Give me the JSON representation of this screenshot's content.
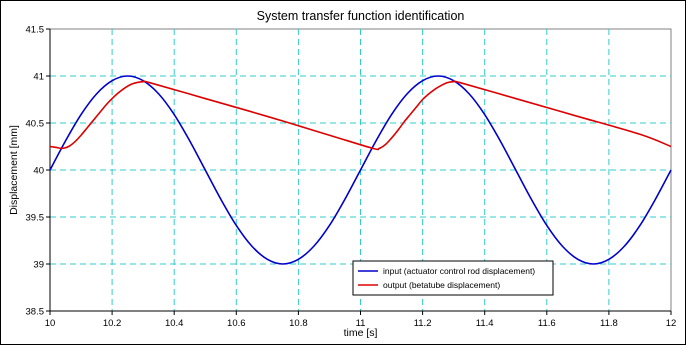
{
  "chart_data": {
    "type": "line",
    "title": "System transfer function identification",
    "xlabel": "time [s]",
    "ylabel": "Displacement [mm]",
    "xlim": [
      10,
      12
    ],
    "ylim": [
      38.5,
      41.5
    ],
    "xticks": [
      10,
      10.2,
      10.4,
      10.6,
      10.8,
      11,
      11.2,
      11.4,
      11.6,
      11.8,
      12
    ],
    "xtick_labels": [
      "10",
      "10.2",
      "10.4",
      "10.6",
      "10.8",
      "11",
      "11.2",
      "11.4",
      "11.6",
      "11.8",
      "12"
    ],
    "yticks": [
      38.5,
      39,
      39.5,
      40,
      40.5,
      41,
      41.5
    ],
    "ytick_labels": [
      "38.5",
      "39",
      "39.5",
      "40",
      "40.5",
      "41",
      "41.5"
    ],
    "grid": true,
    "legend_position": "bottom-center",
    "series": [
      {
        "name": "input (actuator control rod displacement)",
        "color": "#0000cc",
        "x": [
          10,
          10.05,
          10.1,
          10.15,
          10.2,
          10.25,
          10.3,
          10.35,
          10.4,
          10.45,
          10.5,
          10.55,
          10.6,
          10.65,
          10.7,
          10.75,
          10.8,
          10.85,
          10.9,
          10.95,
          11,
          11.05,
          11.1,
          11.15,
          11.2,
          11.25,
          11.3,
          11.35,
          11.4,
          11.45,
          11.5,
          11.55,
          11.6,
          11.65,
          11.7,
          11.75,
          11.8,
          11.85,
          11.9,
          11.95,
          12
        ],
        "y": [
          40,
          40.31,
          40.59,
          40.81,
          40.95,
          41,
          40.95,
          40.81,
          40.59,
          40.31,
          40,
          39.69,
          39.41,
          39.19,
          39.05,
          39,
          39.05,
          39.19,
          39.41,
          39.69,
          40,
          40.31,
          40.59,
          40.81,
          40.95,
          41,
          40.95,
          40.81,
          40.59,
          40.31,
          40,
          39.69,
          39.41,
          39.19,
          39.05,
          39,
          39.05,
          39.19,
          39.41,
          39.69,
          40
        ]
      },
      {
        "name": "output (betatube displacement)",
        "color": "#dd0000",
        "x": [
          10,
          10.02,
          10.04,
          10.06,
          10.08,
          10.1,
          10.12,
          10.14,
          10.16,
          10.18,
          10.2,
          10.22,
          10.24,
          10.26,
          10.28,
          10.3,
          10.32,
          10.5,
          10.7,
          10.9,
          11.04,
          11.06,
          11.08,
          11.1,
          11.12,
          11.14,
          11.16,
          11.18,
          11.2,
          11.22,
          11.24,
          11.26,
          11.28,
          11.3,
          11.32,
          11.5,
          11.7,
          11.9,
          12
        ],
        "y": [
          40.25,
          40.24,
          40.23,
          40.25,
          40.3,
          40.37,
          40.45,
          40.53,
          40.61,
          40.69,
          40.76,
          40.82,
          40.87,
          40.91,
          40.93,
          40.94,
          40.93,
          40.76,
          40.57,
          40.37,
          40.23,
          40.23,
          40.27,
          40.34,
          40.42,
          40.51,
          40.59,
          40.67,
          40.75,
          40.81,
          40.86,
          40.9,
          40.93,
          40.94,
          40.93,
          40.76,
          40.57,
          40.38,
          40.25
        ]
      }
    ]
  }
}
